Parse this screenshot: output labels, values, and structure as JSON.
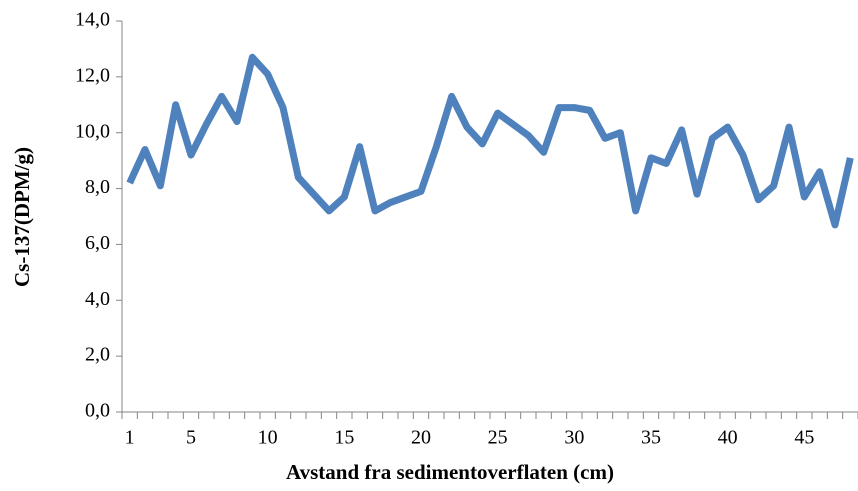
{
  "chart_data": {
    "type": "line",
    "x_label": "Avstand fra sedimentoverflaten (cm)",
    "y_label": "Cs-137(DPM/g)",
    "categories": [
      1,
      null,
      null,
      null,
      5,
      null,
      null,
      null,
      null,
      10,
      null,
      null,
      null,
      null,
      15,
      null,
      null,
      null,
      null,
      20,
      null,
      null,
      null,
      null,
      25,
      null,
      null,
      null,
      null,
      30,
      null,
      null,
      null,
      null,
      35,
      null,
      null,
      null,
      null,
      40,
      null,
      null,
      null,
      null,
      45,
      null,
      null,
      null
    ],
    "series": [
      {
        "name": "Cs-137",
        "color": "#4f81bd",
        "values": [
          8.2,
          9.4,
          8.1,
          11.0,
          9.2,
          10.3,
          11.3,
          10.4,
          12.7,
          12.1,
          10.9,
          8.4,
          7.8,
          7.2,
          7.7,
          9.5,
          7.2,
          7.5,
          7.7,
          7.9,
          9.5,
          11.3,
          10.2,
          9.6,
          10.7,
          10.3,
          9.9,
          9.3,
          10.9,
          10.9,
          10.8,
          9.8,
          10.0,
          7.2,
          9.1,
          8.9,
          10.1,
          7.8,
          9.8,
          10.2,
          9.2,
          7.6,
          8.1,
          10.2,
          7.7,
          8.6,
          6.7,
          9.1
        ]
      }
    ],
    "ylim": [
      0,
      14
    ],
    "yticks": [
      {
        "value": 0,
        "label": "0,0"
      },
      {
        "value": 2,
        "label": "2,0"
      },
      {
        "value": 4,
        "label": "4,0"
      },
      {
        "value": 6,
        "label": "6,0"
      },
      {
        "value": 8,
        "label": "8,0"
      },
      {
        "value": 10,
        "label": "10,0"
      },
      {
        "value": 12,
        "label": "12,0"
      },
      {
        "value": 14,
        "label": "14,0"
      }
    ],
    "grid": false
  }
}
